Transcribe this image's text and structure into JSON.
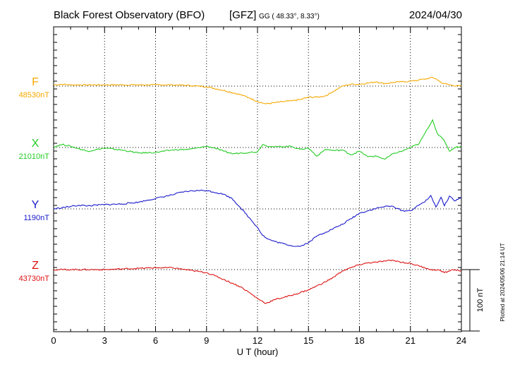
{
  "header": {
    "title": "Black Forest Observatory (BFO)",
    "source": "[GFZ]",
    "coords": "GG ( 48.33°,   8.33°)",
    "date": "2024/04/30"
  },
  "footer_note": "Plotted at 2024/05/06 21:14 UT",
  "chart_data": {
    "type": "line",
    "xlabel": "U T (hour)",
    "xlim": [
      0,
      24
    ],
    "xticks": [
      0,
      3,
      6,
      9,
      12,
      15,
      18,
      21,
      24
    ],
    "scale_bar_label": "100 nT",
    "scale_bar_nT": 100,
    "grid": true,
    "series": [
      {
        "name": "F",
        "baseline_label": "48530nT",
        "baseline_nT": 48530,
        "color": "#f5a800",
        "x": [
          0,
          0.5,
          1,
          2,
          3,
          4,
          5,
          6,
          7,
          8,
          8.5,
          9,
          10,
          11,
          11.5,
          12,
          12.5,
          13,
          14,
          14.5,
          15,
          15.5,
          16,
          16.5,
          17,
          17.5,
          18,
          18.5,
          19,
          19.5,
          20,
          20.5,
          21,
          21.5,
          22,
          22.2,
          22.5,
          22.8,
          23,
          23.5,
          24
        ],
        "y": [
          48532,
          48533,
          48532,
          48532,
          48532,
          48532,
          48532,
          48532,
          48532,
          48531,
          48530,
          48529,
          48523,
          48516,
          48511,
          48505,
          48501,
          48503,
          48506,
          48508,
          48512,
          48512,
          48514,
          48522,
          48530,
          48533,
          48533,
          48535,
          48537,
          48534,
          48536,
          48537,
          48538,
          48540,
          48542,
          48544,
          48542,
          48536,
          48534,
          48531,
          48530
        ]
      },
      {
        "name": "X",
        "baseline_label": "21010nT",
        "baseline_nT": 21010,
        "color": "#22cc22",
        "x": [
          0,
          0.5,
          1,
          2,
          3,
          4,
          5,
          6,
          7,
          8,
          9,
          9.5,
          10,
          10.5,
          11,
          11.5,
          12,
          12.3,
          12.5,
          13,
          14,
          14.5,
          15,
          15.5,
          16,
          16.5,
          17,
          17.5,
          18,
          18.5,
          19,
          19.5,
          20,
          20.5,
          21,
          21.5,
          22,
          22.3,
          22.6,
          23,
          23.3,
          23.6,
          24
        ],
        "y": [
          21011,
          21015,
          21012,
          21004,
          21009,
          21006,
          21001,
          21002,
          21006,
          21007,
          21012,
          21009,
          21004,
          21000,
          21001,
          21002,
          21003,
          21015,
          21013,
          21011,
          21012,
          21007,
          21009,
          20996,
          21007,
          21005,
          21006,
          20998,
          21004,
          20995,
          20996,
          20991,
          21000,
          21004,
          21010,
          21016,
          21040,
          21055,
          21032,
          21021,
          21004,
          21010,
          21012
        ]
      },
      {
        "name": "Y",
        "baseline_label": "1190nT",
        "baseline_nT": 1190,
        "color": "#1a1acc",
        "x": [
          0,
          0.5,
          1,
          1.5,
          2,
          3,
          4,
          5,
          6,
          7,
          7.5,
          8,
          8.5,
          9,
          10,
          10.5,
          11,
          11.5,
          12,
          12.3,
          12.6,
          13,
          14,
          14.5,
          15,
          15.5,
          16,
          17,
          18,
          19,
          19.5,
          20,
          20.5,
          21,
          21.5,
          22,
          22.2,
          22.5,
          22.8,
          23,
          23.3,
          23.6,
          24
        ],
        "y": [
          1190,
          1192,
          1194,
          1196,
          1195,
          1197,
          1198,
          1201,
          1207,
          1213,
          1217,
          1219,
          1220,
          1220,
          1214,
          1207,
          1192,
          1176,
          1160,
          1147,
          1141,
          1137,
          1130,
          1129,
          1135,
          1146,
          1152,
          1165,
          1183,
          1191,
          1194,
          1194,
          1187,
          1187,
          1196,
          1205,
          1212,
          1193,
          1209,
          1195,
          1211,
          1203,
          1209
        ]
      },
      {
        "name": "Z",
        "baseline_label": "43730nT",
        "baseline_nT": 43730,
        "color": "#dd1111",
        "x": [
          0,
          1,
          2,
          3,
          4,
          5,
          6,
          7,
          8,
          9,
          9.5,
          10,
          10.5,
          11,
          11.5,
          12,
          12.5,
          13,
          14,
          15,
          16,
          16.5,
          17,
          18,
          18.5,
          19,
          19.5,
          20,
          20.5,
          21,
          21.5,
          22,
          22.3,
          22.6,
          23,
          23.5,
          24
        ],
        "y": [
          43730,
          43730,
          43730,
          43730,
          43731,
          43732,
          43733,
          43733,
          43729,
          43725,
          43720,
          43714,
          43708,
          43702,
          43693,
          43683,
          43675,
          43681,
          43688,
          43697,
          43710,
          43718,
          43728,
          43738,
          43741,
          43742,
          43744,
          43745,
          43742,
          43740,
          43736,
          43732,
          43729,
          43730,
          43725,
          43730,
          43728
        ]
      }
    ]
  }
}
